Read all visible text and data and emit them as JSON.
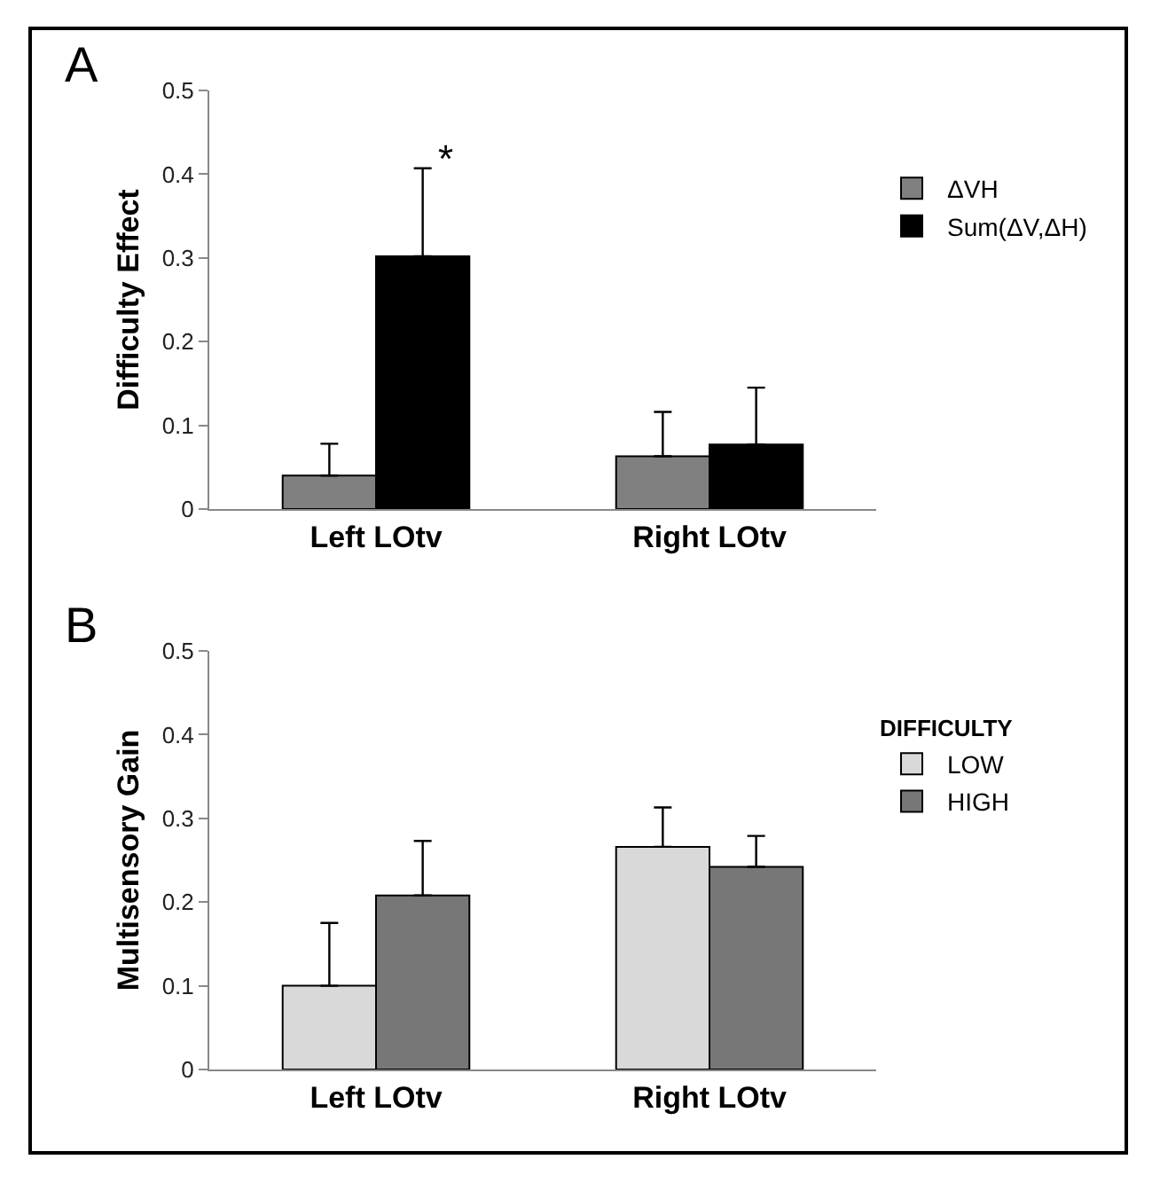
{
  "chart_data": [
    {
      "type": "bar",
      "title": "A",
      "ylabel": "Difficulty Effect",
      "categories": [
        "Left LOtv",
        "Right LOtv"
      ],
      "series": [
        {
          "name": "ΔVH",
          "color": "#808080",
          "values": [
            0.04,
            0.063
          ],
          "errors": [
            [
              0.04,
              0.078
            ],
            [
              0.063,
              0.116
            ]
          ]
        },
        {
          "name": "Sum(ΔV,ΔH)",
          "color": "#000000",
          "values": [
            0.302,
            0.077
          ],
          "errors": [
            [
              0.302,
              0.407
            ],
            [
              0.077,
              0.145
            ]
          ]
        }
      ],
      "ylim": [
        0,
        0.5
      ],
      "yticks": [
        0,
        0.1,
        0.2,
        0.3,
        0.4,
        0.5
      ],
      "grid": false,
      "legend": "right",
      "annotations": [
        "*"
      ]
    },
    {
      "type": "bar",
      "title": "B",
      "ylabel": "Multisensory Gain",
      "legend_title": "DIFFICULTY",
      "categories": [
        "Left LOtv",
        "Right LOtv"
      ],
      "series": [
        {
          "name": "LOW",
          "color": "#d9d9d9",
          "values": [
            0.1,
            0.266
          ],
          "errors": [
            [
              0.1,
              0.175
            ],
            [
              0.266,
              0.313
            ]
          ]
        },
        {
          "name": "HIGH",
          "color": "#777777",
          "values": [
            0.208,
            0.242
          ],
          "errors": [
            [
              0.208,
              0.273
            ],
            [
              0.242,
              0.279
            ]
          ]
        }
      ],
      "ylim": [
        0,
        0.5
      ],
      "yticks": [
        0,
        0.1,
        0.2,
        0.3,
        0.4,
        0.5
      ],
      "grid": false,
      "legend": "right"
    }
  ]
}
